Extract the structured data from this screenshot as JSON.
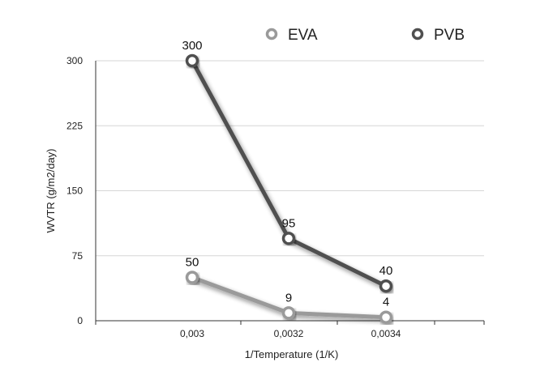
{
  "chart_data": {
    "type": "line",
    "categories": [
      "0,003",
      "0,0032",
      "0,0034"
    ],
    "series": [
      {
        "name": "EVA",
        "values": [
          50,
          9,
          4
        ],
        "color": "#9a9a9a"
      },
      {
        "name": "PVB",
        "values": [
          300,
          95,
          40
        ],
        "color": "#505050"
      }
    ],
    "title": "",
    "xlabel": "1/Temperature (1/K)",
    "ylabel": "WVTR (g/m2/day)",
    "ylim": [
      0,
      300
    ],
    "yticks": [
      0,
      75,
      150,
      225,
      300
    ],
    "grid": true,
    "legend_position": "top"
  }
}
